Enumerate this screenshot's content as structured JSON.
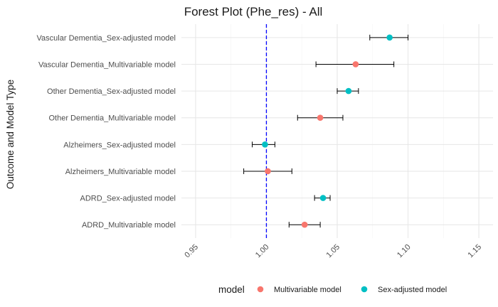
{
  "chart_data": {
    "type": "forest",
    "title": "Forest Plot (Phe_res) - All",
    "ylabel": "Outcome and Model Type",
    "xlabel": "",
    "xlim": [
      0.94,
      1.16
    ],
    "x_ticks": [
      0.95,
      1.0,
      1.05,
      1.1,
      1.15
    ],
    "x_tick_labels": [
      "0.95",
      "1.00",
      "1.05",
      "1.10",
      "1.15"
    ],
    "reference_line": 1.0,
    "reference_color": "#0000ff",
    "grid": true,
    "legend": {
      "title": "model",
      "position": "bottom",
      "entries": [
        {
          "name": "Multivariable model",
          "color": "#f8766d"
        },
        {
          "name": "Sex-adjusted model",
          "color": "#00bfc4"
        }
      ]
    },
    "rows": [
      {
        "label": "Vascular Dementia_Sex-adjusted model",
        "model": "Sex-adjusted model",
        "estimate": 1.087,
        "lower": 1.073,
        "upper": 1.1
      },
      {
        "label": "Vascular Dementia_Multivariable model",
        "model": "Multivariable model",
        "estimate": 1.063,
        "lower": 1.035,
        "upper": 1.09
      },
      {
        "label": "Other Dementia_Sex-adjusted model",
        "model": "Sex-adjusted model",
        "estimate": 1.058,
        "lower": 1.05,
        "upper": 1.065
      },
      {
        "label": "Other Dementia_Multivariable model",
        "model": "Multivariable model",
        "estimate": 1.038,
        "lower": 1.022,
        "upper": 1.054
      },
      {
        "label": "Alzheimers_Sex-adjusted model",
        "model": "Sex-adjusted model",
        "estimate": 0.999,
        "lower": 0.99,
        "upper": 1.006
      },
      {
        "label": "Alzheimers_Multivariable model",
        "model": "Multivariable model",
        "estimate": 1.001,
        "lower": 0.984,
        "upper": 1.018
      },
      {
        "label": "ADRD_Sex-adjusted model",
        "model": "Sex-adjusted model",
        "estimate": 1.04,
        "lower": 1.034,
        "upper": 1.045
      },
      {
        "label": "ADRD_Multivariable model",
        "model": "Multivariable model",
        "estimate": 1.027,
        "lower": 1.016,
        "upper": 1.038
      }
    ]
  }
}
